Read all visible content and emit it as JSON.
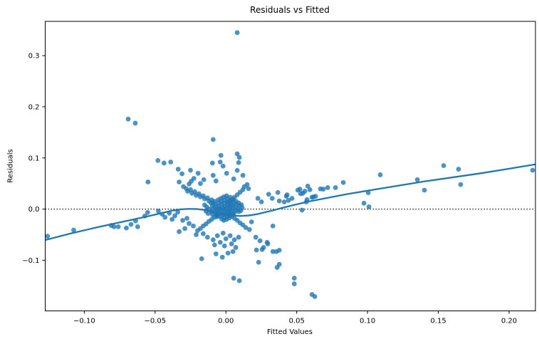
{
  "chart_data": {
    "type": "scatter",
    "title": "Residuals vs Fitted",
    "xlabel": "Fitted Values",
    "ylabel": "Residuals",
    "xlim": [
      -0.1276,
      0.2186
    ],
    "ylim": [
      -0.199,
      0.367
    ],
    "xticks": [
      -0.1,
      -0.05,
      0.0,
      0.05,
      0.1,
      0.15,
      0.2
    ],
    "xtick_labels": [
      "−0.10",
      "−0.05",
      "0.00",
      "0.05",
      "0.10",
      "0.15",
      "0.20"
    ],
    "yticks": [
      -0.1,
      0.0,
      0.1,
      0.2,
      0.3
    ],
    "ytick_labels": [
      "−0.1",
      "0.0",
      "0.1",
      "0.2",
      "0.3"
    ],
    "grid": false,
    "legend_position": "none",
    "styles": {
      "point_color": "#1f77b4",
      "point_opacity": 0.8,
      "point_radius": 3.4,
      "trend_color": "#1f77b4",
      "trend_width": 2.3,
      "zero_line_color": "#000000",
      "spine_color": "#000000",
      "background": "#ffffff"
    },
    "reference_line": {
      "y": 0.0,
      "style": "dotted"
    },
    "lowess": {
      "name": "lowess-trend",
      "points": [
        [
          -0.1276,
          -0.0605
        ],
        [
          -0.11,
          -0.048
        ],
        [
          -0.09,
          -0.035
        ],
        [
          -0.07,
          -0.023
        ],
        [
          -0.055,
          -0.014
        ],
        [
          -0.045,
          -0.0075
        ],
        [
          -0.038,
          -0.003
        ],
        [
          -0.032,
          -0.0005
        ],
        [
          -0.026,
          0.0005
        ],
        [
          -0.02,
          0.0
        ],
        [
          -0.014,
          -0.002
        ],
        [
          -0.008,
          -0.006
        ],
        [
          -0.002,
          -0.01
        ],
        [
          0.004,
          -0.0125
        ],
        [
          0.01,
          -0.0135
        ],
        [
          0.016,
          -0.0125
        ],
        [
          0.022,
          -0.01
        ],
        [
          0.028,
          -0.006
        ],
        [
          0.034,
          -0.002
        ],
        [
          0.04,
          0.0025
        ],
        [
          0.048,
          0.008
        ],
        [
          0.058,
          0.0145
        ],
        [
          0.07,
          0.021
        ],
        [
          0.085,
          0.029
        ],
        [
          0.1,
          0.036
        ],
        [
          0.12,
          0.045
        ],
        [
          0.14,
          0.054
        ],
        [
          0.16,
          0.062
        ],
        [
          0.18,
          0.07
        ],
        [
          0.2,
          0.079
        ],
        [
          0.2186,
          0.0875
        ]
      ]
    },
    "series": [
      {
        "name": "residuals",
        "points": [
          [
            0.008,
            0.345
          ],
          [
            -0.069,
            0.176
          ],
          [
            -0.064,
            0.168
          ],
          [
            -0.009,
            0.136
          ],
          [
            -0.0035,
            0.105
          ],
          [
            0.008,
            0.108
          ],
          [
            0.0095,
            0.101
          ],
          [
            -0.004,
            0.092
          ],
          [
            -0.0095,
            0.09
          ],
          [
            -0.002,
            0.084
          ],
          [
            0.009,
            0.091
          ],
          [
            0.008,
            0.0756
          ],
          [
            0.012,
            0.066
          ],
          [
            0.0005,
            0.07
          ],
          [
            -0.009,
            0.066
          ],
          [
            -0.007,
            0.055
          ],
          [
            0.0055,
            0.059
          ],
          [
            -0.048,
            0.095
          ],
          [
            -0.0437,
            0.09
          ],
          [
            -0.039,
            0.092
          ],
          [
            -0.0337,
            0.078
          ],
          [
            -0.031,
            0.069
          ],
          [
            -0.025,
            0.076
          ],
          [
            -0.033,
            0.053
          ],
          [
            -0.055,
            0.053
          ],
          [
            -0.026,
            0.049
          ],
          [
            -0.0196,
            0.07
          ],
          [
            -0.0156,
            0.0575
          ],
          [
            -0.0226,
            0.06
          ],
          [
            -0.018,
            0.05
          ],
          [
            -0.0245,
            0.0545
          ],
          [
            -0.126,
            -0.053
          ],
          [
            -0.1075,
            -0.041
          ],
          [
            -0.081,
            -0.032
          ],
          [
            -0.079,
            -0.0345
          ],
          [
            -0.076,
            -0.0345
          ],
          [
            -0.0703,
            -0.037
          ],
          [
            -0.067,
            -0.03
          ],
          [
            -0.0638,
            -0.023
          ],
          [
            -0.0623,
            -0.0345
          ],
          [
            -0.0573,
            -0.0136
          ],
          [
            -0.0553,
            -0.0066
          ],
          [
            -0.0477,
            -0.0038
          ],
          [
            -0.045,
            -0.01
          ],
          [
            -0.043,
            -0.016
          ],
          [
            -0.04,
            -0.008
          ],
          [
            -0.038,
            -0.02
          ],
          [
            -0.036,
            -0.013
          ],
          [
            -0.034,
            -0.006
          ],
          [
            -0.0305,
            -0.022
          ],
          [
            -0.0275,
            -0.018
          ],
          [
            -0.026,
            -0.028
          ],
          [
            -0.023,
            -0.033
          ],
          [
            -0.029,
            -0.038
          ],
          [
            -0.033,
            -0.044
          ],
          [
            -0.021,
            -0.05
          ],
          [
            -0.03,
            0.044
          ],
          [
            -0.028,
            0.04
          ],
          [
            -0.027,
            0.035
          ],
          [
            -0.025,
            0.038
          ],
          [
            -0.024,
            0.031
          ],
          [
            -0.022,
            0.034
          ],
          [
            -0.021,
            0.027
          ],
          [
            -0.019,
            0.03
          ],
          [
            -0.018,
            0.024
          ],
          [
            -0.016,
            0.026
          ],
          [
            -0.015,
            0.02
          ],
          [
            -0.013,
            0.022
          ],
          [
            -0.012,
            0.016
          ],
          [
            -0.01,
            0.018
          ],
          [
            -0.009,
            0.012
          ],
          [
            0.002,
            0.014
          ],
          [
            0.004,
            0.018
          ],
          [
            0.006,
            0.023
          ],
          [
            0.008,
            0.028
          ],
          [
            0.01,
            0.033
          ],
          [
            0.012,
            0.038
          ],
          [
            0.013,
            0.044
          ],
          [
            0.015,
            0.048
          ],
          [
            0.016,
            0.04
          ],
          [
            -0.02,
            -0.042
          ],
          [
            -0.018,
            -0.038
          ],
          [
            -0.016,
            -0.033
          ],
          [
            -0.014,
            -0.029
          ],
          [
            -0.012,
            -0.024
          ],
          [
            -0.01,
            -0.02
          ],
          [
            -0.008,
            -0.016
          ],
          [
            -0.006,
            -0.012
          ],
          [
            0.002,
            -0.01
          ],
          [
            0.004,
            -0.014
          ],
          [
            0.006,
            -0.018
          ],
          [
            0.008,
            -0.022
          ],
          [
            0.01,
            -0.027
          ],
          [
            0.012,
            -0.031
          ],
          [
            0.014,
            -0.036
          ],
          [
            0.0181,
            -0.025
          ],
          [
            0.0166,
            -0.04
          ],
          [
            0.0211,
            -0.055
          ],
          [
            0.0241,
            -0.062
          ],
          [
            0.0291,
            -0.065
          ],
          [
            0.0266,
            -0.075
          ],
          [
            0.0332,
            -0.033
          ],
          [
            -0.015,
            0.008
          ],
          [
            -0.0135,
            0.004
          ],
          [
            -0.012,
            0.0
          ],
          [
            -0.014,
            -0.004
          ],
          [
            -0.0125,
            -0.0085
          ],
          [
            -0.0105,
            0.012
          ],
          [
            -0.0095,
            0.006
          ],
          [
            -0.009,
            0.001
          ],
          [
            -0.01,
            -0.005
          ],
          [
            -0.0095,
            -0.0105
          ],
          [
            -0.008,
            0.015
          ],
          [
            -0.0075,
            0.009
          ],
          [
            -0.007,
            0.004
          ],
          [
            -0.0065,
            -0.001
          ],
          [
            -0.0075,
            -0.006
          ],
          [
            -0.007,
            -0.012
          ],
          [
            -0.0055,
            0.018
          ],
          [
            -0.005,
            0.012
          ],
          [
            -0.005,
            0.006
          ],
          [
            -0.0045,
            0.001
          ],
          [
            -0.0055,
            -0.004
          ],
          [
            -0.005,
            -0.0095
          ],
          [
            -0.006,
            -0.015
          ],
          [
            -0.0035,
            0.021
          ],
          [
            -0.003,
            0.015
          ],
          [
            -0.003,
            0.009
          ],
          [
            -0.0025,
            0.003
          ],
          [
            -0.0035,
            -0.0025
          ],
          [
            -0.003,
            -0.008
          ],
          [
            -0.004,
            -0.0135
          ],
          [
            -0.003,
            -0.019
          ],
          [
            -0.0015,
            0.024
          ],
          [
            -0.001,
            0.018
          ],
          [
            -0.001,
            0.0115
          ],
          [
            -0.0005,
            0.0055
          ],
          [
            -0.0015,
            0.0
          ],
          [
            -0.001,
            -0.0055
          ],
          [
            -0.002,
            -0.011
          ],
          [
            -0.001,
            -0.0165
          ],
          [
            -0.0015,
            -0.022
          ],
          [
            0.0005,
            0.026
          ],
          [
            0.001,
            0.02
          ],
          [
            0.001,
            0.0135
          ],
          [
            0.0015,
            0.0075
          ],
          [
            0.0005,
            0.002
          ],
          [
            0.001,
            -0.0035
          ],
          [
            0.0,
            -0.009
          ],
          [
            0.001,
            -0.0145
          ],
          [
            0.0005,
            -0.02
          ],
          [
            0.003,
            0.023
          ],
          [
            0.003,
            0.0165
          ],
          [
            0.0035,
            0.0105
          ],
          [
            0.0025,
            0.005
          ],
          [
            0.003,
            -0.0005
          ],
          [
            0.002,
            -0.006
          ],
          [
            0.003,
            -0.0115
          ],
          [
            0.0025,
            -0.017
          ],
          [
            0.005,
            0.019
          ],
          [
            0.0055,
            0.013
          ],
          [
            0.0045,
            0.0075
          ],
          [
            0.005,
            0.002
          ],
          [
            0.004,
            -0.0035
          ],
          [
            0.005,
            -0.009
          ],
          [
            0.007,
            0.0155
          ],
          [
            0.0075,
            0.0095
          ],
          [
            0.0065,
            0.004
          ],
          [
            0.007,
            -0.0015
          ],
          [
            0.006,
            -0.007
          ],
          [
            0.009,
            0.012
          ],
          [
            0.0095,
            0.006
          ],
          [
            0.0085,
            0.0005
          ],
          [
            0.009,
            -0.005
          ],
          [
            0.011,
            0.0085
          ],
          [
            0.0115,
            0.0025
          ],
          [
            0.0105,
            -0.003
          ],
          [
            -0.013,
            -0.055
          ],
          [
            -0.009,
            -0.06
          ],
          [
            -0.016,
            -0.048
          ],
          [
            -0.006,
            -0.052
          ],
          [
            0.0,
            -0.058
          ],
          [
            -0.002,
            -0.047
          ],
          [
            0.003,
            -0.052
          ],
          [
            0.006,
            -0.06
          ],
          [
            0.009,
            -0.055
          ],
          [
            0.004,
            -0.068
          ],
          [
            -0.001,
            -0.072
          ],
          [
            0.007,
            -0.075
          ],
          [
            -0.004,
            -0.065
          ],
          [
            -0.008,
            -0.07
          ],
          [
            -0.0171,
            -0.097
          ],
          [
            -0.007,
            -0.0875
          ],
          [
            -0.0025,
            -0.094
          ],
          [
            0.0015,
            -0.086
          ],
          [
            0.005,
            -0.083
          ],
          [
            0.0055,
            -0.135
          ],
          [
            0.0095,
            -0.14
          ],
          [
            0.0231,
            -0.104
          ],
          [
            0.0216,
            -0.08
          ],
          [
            0.0256,
            -0.079
          ],
          [
            0.0296,
            -0.068
          ],
          [
            0.0332,
            -0.083
          ],
          [
            0.0357,
            -0.083
          ],
          [
            0.0362,
            -0.114
          ],
          [
            0.0377,
            -0.0805
          ],
          [
            0.0377,
            -0.108
          ],
          [
            0.0483,
            -0.135
          ],
          [
            0.0483,
            -0.146
          ],
          [
            0.0608,
            -0.167
          ],
          [
            0.0628,
            -0.171
          ],
          [
            0.0226,
            0.021
          ],
          [
            0.0251,
            0.014
          ],
          [
            0.0302,
            0.029
          ],
          [
            0.0327,
            0.021
          ],
          [
            0.0367,
            0.0325
          ],
          [
            0.0377,
            0.016
          ],
          [
            0.0427,
            0.025
          ],
          [
            0.0412,
            0.014
          ],
          [
            0.0432,
            0.028
          ],
          [
            0.0442,
            0.017
          ],
          [
            0.0467,
            0.021
          ],
          [
            0.0508,
            0.037
          ],
          [
            0.0523,
            0.039
          ],
          [
            0.0528,
            0.03
          ],
          [
            0.0538,
            -0.002
          ],
          [
            0.0543,
            0.031
          ],
          [
            0.0558,
            0.035
          ],
          [
            0.0568,
            0.014
          ],
          [
            0.0573,
            0.0185
          ],
          [
            0.0578,
            0.045
          ],
          [
            0.0593,
            0.038
          ],
          [
            0.0608,
            0.023
          ],
          [
            0.0618,
            0.024
          ],
          [
            0.0633,
            0.025
          ],
          [
            0.0668,
            0.0395
          ],
          [
            0.0688,
            0.039
          ],
          [
            0.0719,
            0.042
          ],
          [
            0.0774,
            0.042
          ],
          [
            0.0829,
            0.052
          ],
          [
            0.1005,
            0.032
          ],
          [
            0.0975,
            0.0115
          ],
          [
            0.101,
            0.0045
          ],
          [
            0.109,
            0.067
          ],
          [
            0.1352,
            0.0575
          ],
          [
            0.1402,
            0.037
          ],
          [
            0.1538,
            0.085
          ],
          [
            0.1643,
            0.078
          ],
          [
            0.1658,
            0.048
          ],
          [
            0.2166,
            0.076
          ]
        ]
      }
    ]
  }
}
